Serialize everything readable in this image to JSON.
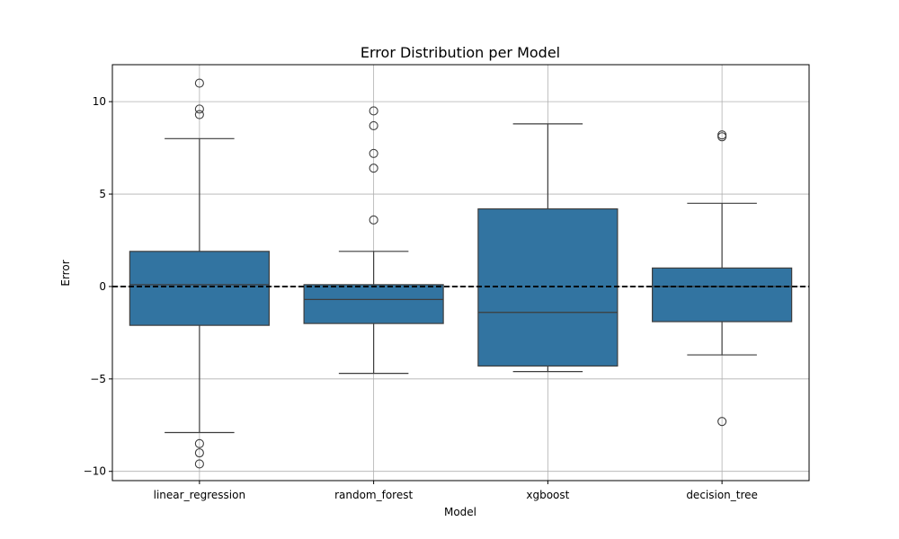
{
  "chart_data": {
    "type": "boxplot",
    "title": "Error Distribution per Model",
    "xlabel": "Model",
    "ylabel": "Error",
    "ylim": [
      -10.5,
      12.0
    ],
    "yticks": [
      -10,
      -5,
      0,
      5,
      10
    ],
    "ytick_labels": [
      "−10",
      "−5",
      "0",
      "5",
      "10"
    ],
    "grid": true,
    "box_color": "#3274a1",
    "reference_line": {
      "y": 0,
      "style": "dashed",
      "color": "#000000"
    },
    "categories": [
      "linear_regression",
      "random_forest",
      "xgboost",
      "decision_tree"
    ],
    "boxes": [
      {
        "name": "linear_regression",
        "whislo": -7.9,
        "q1": -2.1,
        "med": 0.1,
        "q3": 1.9,
        "whishi": 8.0,
        "fliers": [
          11.0,
          9.6,
          9.3,
          -8.5,
          -9.0,
          -9.6
        ]
      },
      {
        "name": "random_forest",
        "whislo": -4.7,
        "q1": -2.0,
        "med": -0.7,
        "q3": 0.1,
        "whishi": 1.9,
        "fliers": [
          9.5,
          8.7,
          7.2,
          6.4,
          3.6
        ]
      },
      {
        "name": "xgboost",
        "whislo": -4.6,
        "q1": -4.3,
        "med": -1.4,
        "q3": 4.2,
        "whishi": 8.8,
        "fliers": []
      },
      {
        "name": "decision_tree",
        "whislo": -3.7,
        "q1": -1.9,
        "med": 0.0,
        "q3": 1.0,
        "whishi": 4.5,
        "fliers": [
          8.2,
          8.1,
          -7.3
        ]
      }
    ]
  }
}
